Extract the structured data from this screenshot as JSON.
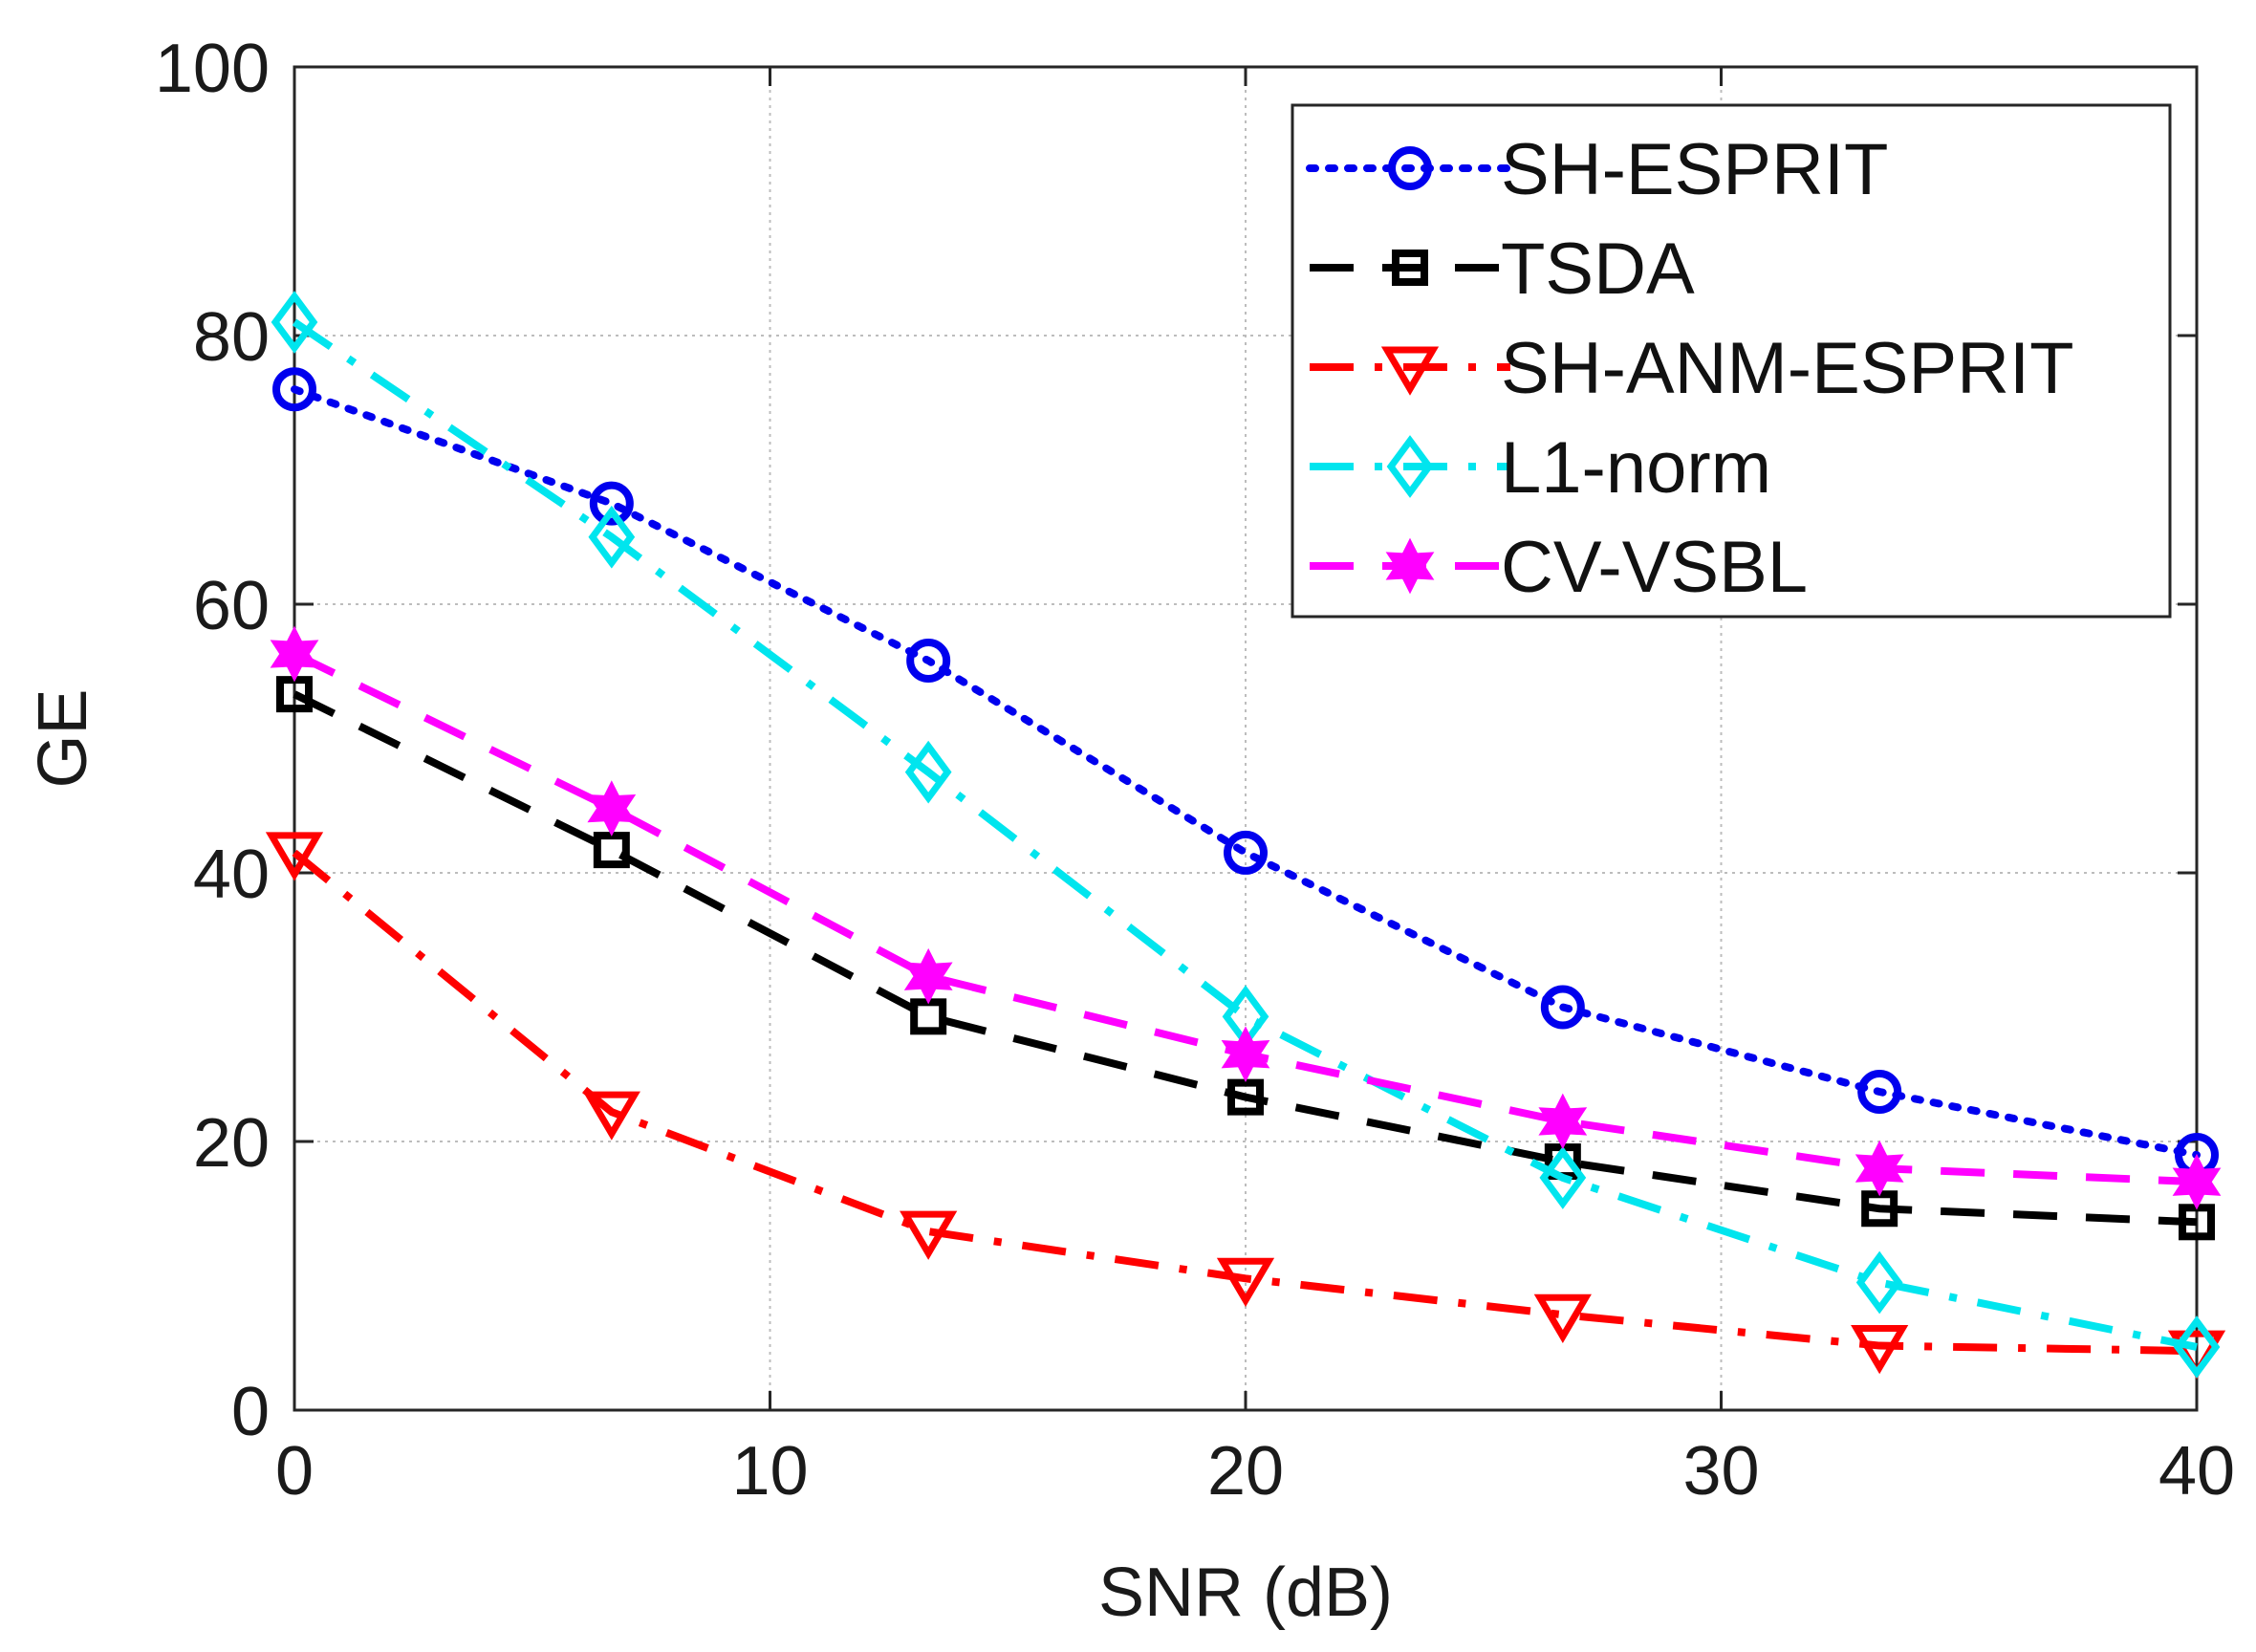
{
  "chart_data": {
    "type": "line",
    "title": "",
    "xlabel": "SNR (dB)",
    "ylabel": "GE",
    "xlim": [
      0,
      40
    ],
    "ylim": [
      0,
      100
    ],
    "xticks": [
      0,
      10,
      20,
      30,
      40
    ],
    "yticks": [
      0,
      20,
      40,
      60,
      80,
      100
    ],
    "xtick_labels": [
      "0",
      "10",
      "20",
      "30",
      "40"
    ],
    "ytick_labels": [
      "0",
      "20",
      "40",
      "60",
      "80",
      "100"
    ],
    "grid": true,
    "legend_position": "top-right",
    "x": [
      0,
      6.67,
      13.33,
      20,
      26.67,
      33.33,
      40
    ],
    "series": [
      {
        "name": "SH-ESPRIT",
        "color": "#0000ee",
        "line_style": "dotted",
        "marker": "circle",
        "values": [
          76,
          67.5,
          55.8,
          41.5,
          30,
          23.7,
          19
        ]
      },
      {
        "name": "TSDA",
        "color": "#000000",
        "line_style": "dashed",
        "marker": "square",
        "values": [
          53.3,
          41.7,
          29.3,
          23.3,
          18.5,
          15,
          14
        ]
      },
      {
        "name": "SH-ANM-ESPRIT",
        "color": "#ff0000",
        "line_style": "dash-dot",
        "marker": "triangle-down",
        "values": [
          41.5,
          22.2,
          13.3,
          9.8,
          7.1,
          4.8,
          4.4
        ]
      },
      {
        "name": "L1-norm",
        "color": "#00e5ee",
        "line_style": "dash-dot",
        "marker": "diamond",
        "values": [
          81,
          65,
          47.5,
          29.3,
          17.3,
          9.5,
          4.7
        ]
      },
      {
        "name": "CV-VSBL",
        "color": "#ff00ff",
        "line_style": "dashed",
        "marker": "hexagram",
        "values": [
          56.3,
          44.8,
          32.3,
          26.5,
          21.5,
          18,
          17
        ]
      }
    ]
  }
}
